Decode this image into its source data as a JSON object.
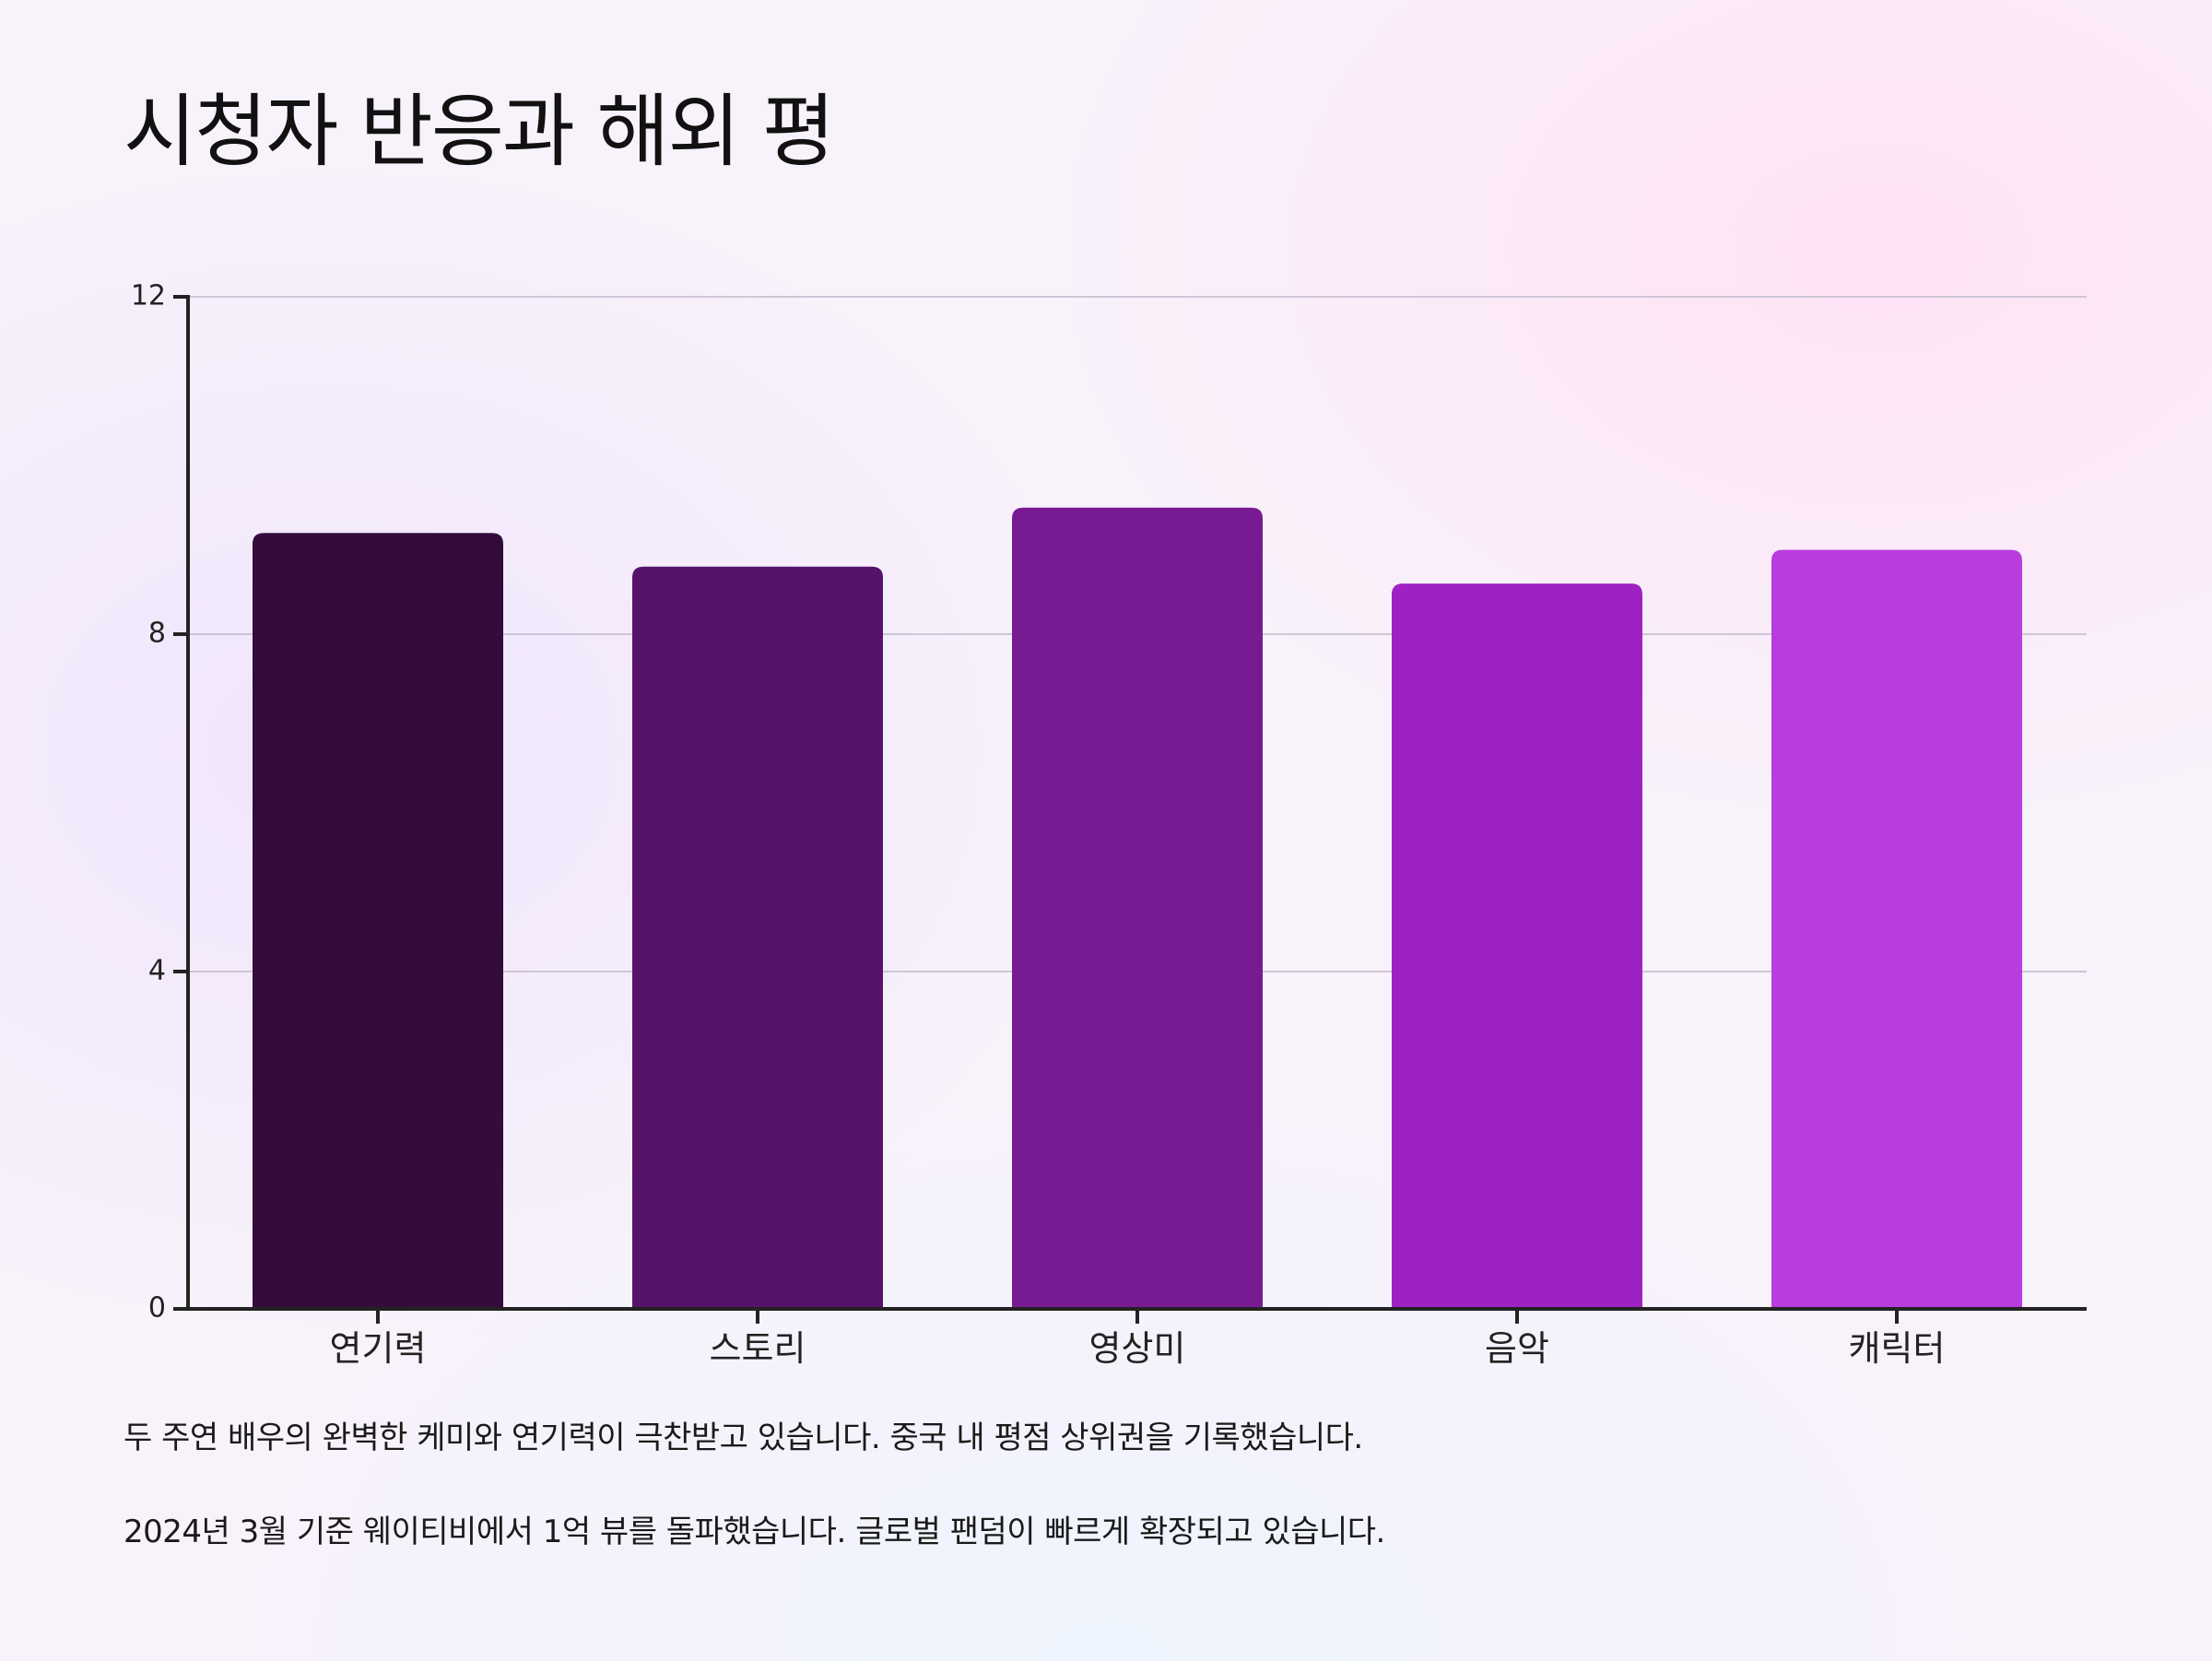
{
  "title": "시청자 반응과 해외 평",
  "chart_data": {
    "type": "bar",
    "categories": [
      "연기력",
      "스토리",
      "영상미",
      "음악",
      "캐릭터"
    ],
    "values": [
      9.2,
      8.8,
      9.5,
      8.6,
      9.0
    ],
    "ylim": [
      0,
      12
    ],
    "yticks": [
      0,
      4,
      8,
      12
    ],
    "grid": true,
    "colors": [
      "#340c3c",
      "#56136a",
      "#781b93",
      "#9e22c2",
      "#b73ddc"
    ]
  },
  "notes": [
    "두 주연 배우의 완벽한 케미와 연기력이 극찬받고 있습니다. 중국 내 평점 상위권을 기록했습니다.",
    "2024년 3월 기준 웨이티비에서 1억 뷰를 돌파했습니다. 글로벌 팬덤이 빠르게 확장되고 있습니다."
  ]
}
